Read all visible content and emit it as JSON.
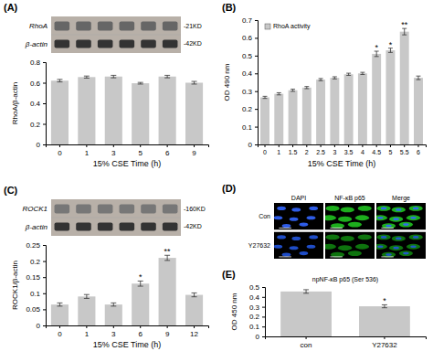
{
  "chart_data": [
    {
      "type": "blot",
      "title": "(A)",
      "categories": [
        "RhoA",
        "β-actin"
      ],
      "annotations": [
        "-21KD",
        "-42KD"
      ],
      "color": "#b8b0a8",
      "colors": [
        "#666666",
        "#333333"
      ]
    },
    {
      "type": "bar",
      "categories": [
        "0",
        "1",
        "3",
        "5",
        "6",
        "9"
      ],
      "values": [
        0.62,
        0.655,
        0.66,
        0.595,
        0.66,
        0.6
      ],
      "errors": [
        0.012,
        0.01,
        0.012,
        0.008,
        0.012,
        0.013
      ],
      "xlabel": "15% CSE Time (h)",
      "ylabel": "RhoA/β-actin",
      "ylim": [
        0.0,
        0.8
      ],
      "yticks": [
        0.0,
        0.2,
        0.4,
        0.6,
        0.8
      ],
      "color": "#c8c8c8"
    },
    {
      "type": "bar",
      "title": "(B)",
      "categories": [
        "0",
        "1",
        "1.5",
        "2",
        "2.5",
        "3",
        "3.5",
        "4",
        "4.5",
        "5",
        "5.5",
        "6"
      ],
      "series": [
        {
          "name": "RhoA activity",
          "color": "#c8c8c8",
          "values": [
            0.265,
            0.285,
            0.305,
            0.32,
            0.365,
            0.375,
            0.395,
            0.4,
            0.51,
            0.53,
            0.635,
            0.375
          ],
          "errors": [
            0.006,
            0.006,
            0.006,
            0.006,
            0.006,
            0.006,
            0.006,
            0.006,
            0.015,
            0.012,
            0.018,
            0.01
          ]
        }
      ],
      "significance": [
        null,
        null,
        null,
        null,
        null,
        null,
        null,
        null,
        "*",
        "*",
        "**",
        null
      ],
      "xlabel": "15% CSE Time (h)",
      "ylabel": "OD 490 nm",
      "ylim": [
        0.0,
        0.7
      ],
      "yticks": [
        0.0,
        0.1,
        0.2,
        0.3,
        0.4,
        0.5,
        0.6,
        0.7
      ],
      "legend": "upper left"
    },
    {
      "type": "blot",
      "title": "(C)",
      "categories": [
        "ROCK1",
        "β-actin"
      ],
      "annotations": [
        "-160KD",
        "-42KD"
      ],
      "color": "#b8b0a8",
      "colors": [
        "#777777",
        "#333333"
      ]
    },
    {
      "type": "bar",
      "categories": [
        "0",
        "1",
        "3",
        "6",
        "9",
        "12"
      ],
      "values": [
        0.065,
        0.09,
        0.065,
        0.13,
        0.21,
        0.095
      ],
      "errors": [
        0.005,
        0.006,
        0.005,
        0.008,
        0.008,
        0.006
      ],
      "significance": [
        null,
        null,
        null,
        "*",
        "**",
        null
      ],
      "xlabel": "15% CSE Time (h)",
      "ylabel": "ROCK1/β-actin",
      "ylim": [
        0.0,
        0.25
      ],
      "yticks": [
        0.0,
        0.05,
        0.1,
        0.15,
        0.2,
        0.25
      ],
      "color": "#c8c8c8"
    },
    {
      "type": "image",
      "title": "(D)",
      "categories": [
        "DAPI",
        "NF-κB p65",
        "Merge"
      ],
      "series": [
        {
          "name": "Con",
          "colors": [
            "#3366ff",
            "#22cc22"
          ]
        },
        {
          "name": "Y27632",
          "colors": [
            "#2255dd",
            "#118811"
          ]
        }
      ]
    },
    {
      "type": "bar",
      "title": "(E)",
      "categories": [
        "con",
        "Y27632"
      ],
      "values": [
        0.455,
        0.305
      ],
      "errors": [
        0.018,
        0.015
      ],
      "significance": [
        null,
        "*"
      ],
      "ylabel": "OD 450 nm",
      "ylim": [
        0.0,
        0.5
      ],
      "yticks": [
        0.0,
        0.1,
        0.2,
        0.3,
        0.4,
        0.5
      ],
      "annotations": [
        "npNF-κB p65 (Ser 536)"
      ],
      "color": "#c8c8c8"
    }
  ]
}
